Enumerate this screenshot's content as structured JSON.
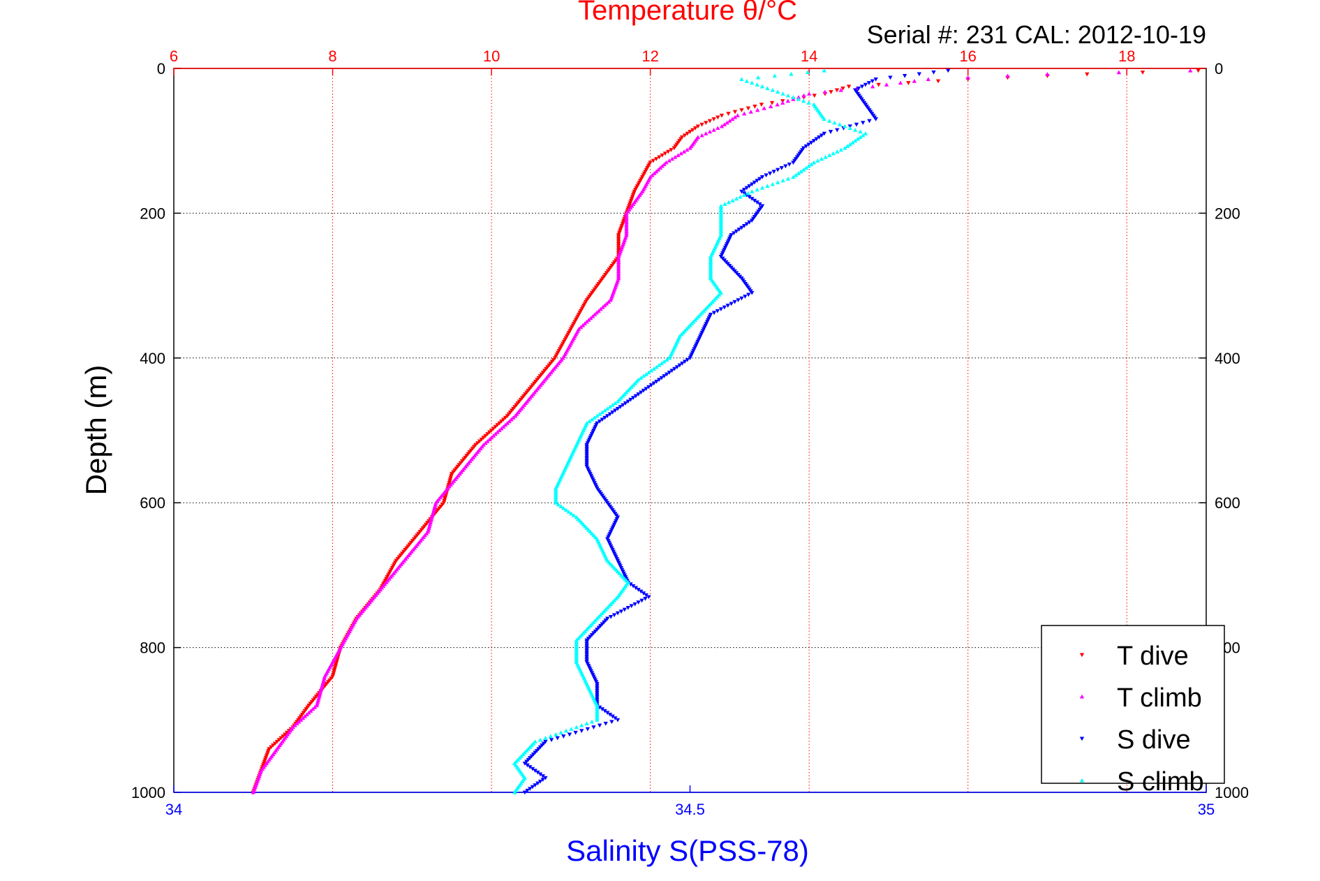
{
  "chart_data": {
    "type": "scatter",
    "title": "Temperature θ/°C",
    "subtitle": "Serial #: 231  CAL: 2012-10-19",
    "ylabel": "Depth (m)",
    "xlabel_bottom": "Salinity S(PSS-78)",
    "xlabel_top": "Temperature θ/°C",
    "ylim": [
      1000,
      0
    ],
    "yticks": [
      0,
      200,
      400,
      600,
      800,
      1000
    ],
    "x_top_lim": [
      6,
      19
    ],
    "x_top_ticks": [
      6,
      8,
      10,
      12,
      14,
      16,
      18
    ],
    "x_bottom_lim": [
      34,
      35
    ],
    "x_bottom_ticks": [
      "34",
      "34.5",
      "35"
    ],
    "x_bottom_tick_values": [
      34,
      34.5,
      35
    ],
    "grid": true,
    "legend_position": "bottom-right",
    "colors": {
      "temperature_axis": "#ff0000",
      "salinity_axis": "#0000ff",
      "t_dive": "#ff0000",
      "t_climb": "#ff00ff",
      "s_dive": "#0000ff",
      "s_climb": "#00ffff"
    },
    "series": [
      {
        "name": "T dive",
        "axis": "temperature",
        "marker": "triangle-down",
        "color": "#ff0000",
        "depth": [
          3,
          8,
          15,
          25,
          35,
          50,
          65,
          80,
          95,
          110,
          130,
          150,
          170,
          200,
          230,
          260,
          290,
          320,
          360,
          400,
          440,
          480,
          520,
          560,
          600,
          640,
          680,
          720,
          760,
          800,
          840,
          880,
          910,
          940,
          970,
          1000
        ],
        "values": [
          18.9,
          17.5,
          16.0,
          14.5,
          14.2,
          13.4,
          12.9,
          12.6,
          12.4,
          12.3,
          12.0,
          11.9,
          11.8,
          11.7,
          11.6,
          11.6,
          11.4,
          11.2,
          11.0,
          10.8,
          10.5,
          10.2,
          9.8,
          9.5,
          9.4,
          9.1,
          8.8,
          8.6,
          8.3,
          8.1,
          8.0,
          7.7,
          7.5,
          7.2,
          7.1,
          7.0
        ]
      },
      {
        "name": "T climb",
        "axis": "temperature",
        "marker": "triangle-up",
        "color": "#ff00ff",
        "depth": [
          3,
          8,
          15,
          25,
          35,
          50,
          65,
          80,
          95,
          110,
          130,
          150,
          170,
          200,
          230,
          260,
          290,
          320,
          360,
          400,
          440,
          480,
          520,
          560,
          600,
          640,
          680,
          720,
          760,
          800,
          840,
          880,
          910,
          940,
          970,
          1000
        ],
        "values": [
          18.8,
          17.0,
          15.5,
          14.8,
          14.0,
          13.6,
          13.1,
          12.9,
          12.6,
          12.5,
          12.2,
          12.0,
          11.9,
          11.7,
          11.7,
          11.6,
          11.6,
          11.5,
          11.1,
          10.9,
          10.6,
          10.3,
          9.9,
          9.6,
          9.3,
          9.2,
          8.9,
          8.6,
          8.3,
          8.1,
          7.9,
          7.8,
          7.5,
          7.3,
          7.1,
          7.0
        ]
      },
      {
        "name": "S dive",
        "axis": "salinity",
        "marker": "triangle-down",
        "color": "#0000ff",
        "depth": [
          3,
          15,
          30,
          50,
          70,
          90,
          110,
          130,
          150,
          170,
          190,
          210,
          230,
          260,
          290,
          310,
          340,
          370,
          400,
          430,
          460,
          490,
          520,
          550,
          580,
          600,
          620,
          650,
          680,
          710,
          730,
          760,
          790,
          820,
          850,
          880,
          900,
          930,
          960,
          980,
          1000
        ],
        "values": [
          34.75,
          34.68,
          34.66,
          34.67,
          34.68,
          34.63,
          34.61,
          34.6,
          34.57,
          34.55,
          34.57,
          34.56,
          34.54,
          34.53,
          34.55,
          34.56,
          34.52,
          34.51,
          34.5,
          34.47,
          34.44,
          34.41,
          34.4,
          34.4,
          34.41,
          34.42,
          34.43,
          34.42,
          34.43,
          34.44,
          34.46,
          34.42,
          34.4,
          34.4,
          34.41,
          34.41,
          34.43,
          34.36,
          34.34,
          34.36,
          34.34
        ]
      },
      {
        "name": "S climb",
        "axis": "salinity",
        "marker": "triangle-up",
        "color": "#00ffff",
        "depth": [
          3,
          15,
          30,
          50,
          70,
          90,
          110,
          130,
          150,
          170,
          190,
          210,
          230,
          260,
          290,
          310,
          340,
          370,
          400,
          430,
          460,
          490,
          520,
          550,
          580,
          600,
          620,
          650,
          680,
          710,
          730,
          760,
          790,
          820,
          850,
          880,
          900,
          930,
          960,
          980,
          1000
        ],
        "values": [
          34.63,
          34.55,
          34.58,
          34.62,
          34.63,
          34.67,
          34.65,
          34.62,
          34.6,
          34.56,
          34.53,
          34.53,
          34.53,
          34.52,
          34.52,
          34.53,
          34.51,
          34.49,
          34.48,
          34.45,
          34.43,
          34.4,
          34.39,
          34.38,
          34.37,
          34.37,
          34.39,
          34.41,
          34.42,
          34.44,
          34.43,
          34.41,
          34.39,
          34.39,
          34.4,
          34.41,
          34.41,
          34.35,
          34.33,
          34.34,
          34.33
        ]
      }
    ]
  }
}
